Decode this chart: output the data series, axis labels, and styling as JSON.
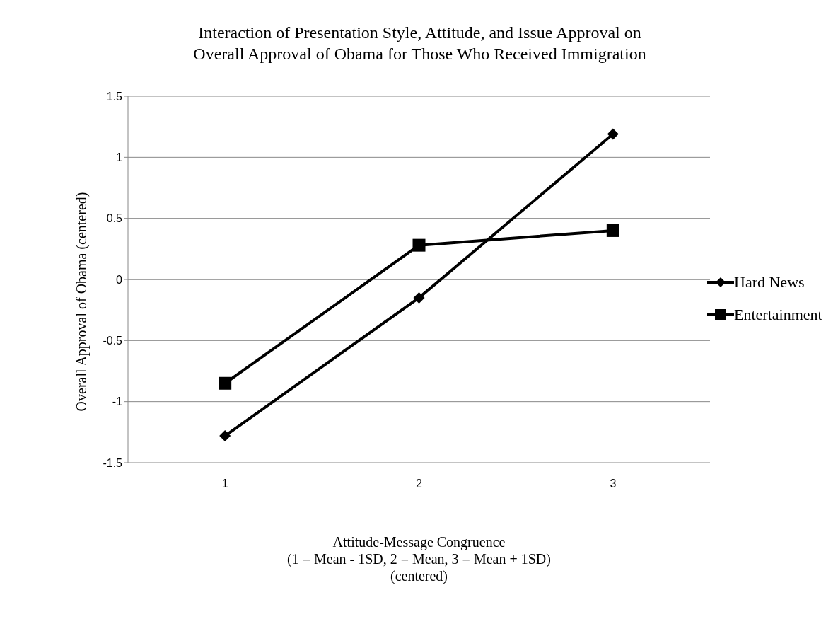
{
  "chart_data": {
    "type": "line",
    "title": "Interaction of Presentation Style, Attitude, and Issue Approval on\nOverall Approval of Obama for Those Who Received Immigration",
    "xlabel": "Attitude-Message Congruence\n(1 = Mean - 1SD,   2 = Mean,   3 = Mean + 1SD)\n(centered)",
    "ylabel": "Overall Approval of Obama (centered)",
    "categories": [
      "1",
      "2",
      "3"
    ],
    "series": [
      {
        "name": "Hard News",
        "color": "#000000",
        "marker": "diamond",
        "values": [
          -1.28,
          -0.15,
          1.19
        ]
      },
      {
        "name": "Entertainment",
        "color": "#000000",
        "marker": "square",
        "values": [
          -0.85,
          0.28,
          0.4
        ]
      }
    ],
    "ylim": [
      -1.5,
      1.5
    ],
    "yticks": [
      -1.5,
      -1,
      -0.5,
      0,
      0.5,
      1,
      1.5
    ],
    "grid": "y",
    "legend": "right",
    "line_style": "solid"
  }
}
